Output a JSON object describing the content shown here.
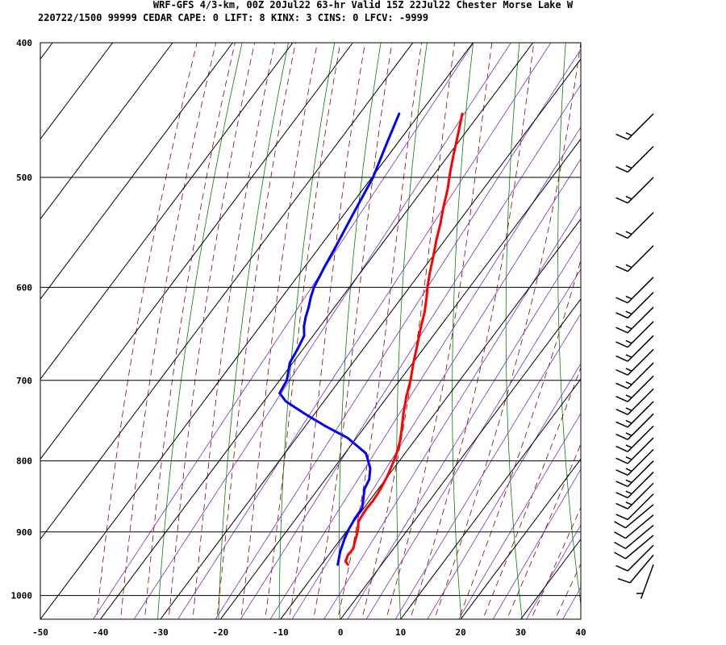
{
  "header": {
    "line1": "WRF-GFS 4/3-km, 00Z 20Jul22 63-hr Valid 15Z 22Jul22 Chester Morse Lake W",
    "line2": "220722/1500 99999  CEDAR   CAPE:     0 LIFT:     8 KINX:     3 CINS:     0 LFCV: -9999"
  },
  "colors": {
    "background": "#ffffff",
    "grid": "#000000",
    "temperature": "#ff0000",
    "dewpoint": "#0000ff",
    "dry_adiabat": "#008000",
    "moist_adiabat": "#8b0000",
    "mixing_ratio": "#7b2fbe",
    "barbs": "#000000"
  },
  "chart_data": {
    "type": "skew-t",
    "x": {
      "label": "",
      "range": [
        -50,
        40
      ],
      "ticks": [
        "-50",
        "-40",
        "-30",
        "-20",
        "-10",
        "0",
        "10",
        "20",
        "30",
        "40"
      ],
      "tick_values": [
        -50,
        -40,
        -30,
        -20,
        -10,
        0,
        10,
        20,
        30,
        40
      ]
    },
    "y": {
      "label": "",
      "scale": "log",
      "range": [
        1040,
        400
      ],
      "ticks": [
        "400",
        "500",
        "600",
        "700",
        "800",
        "900",
        "1000"
      ],
      "tick_values": [
        400,
        500,
        600,
        700,
        800,
        900,
        1000
      ]
    },
    "grid": true,
    "series": [
      {
        "key": "temperature",
        "pressure": [
          950,
          945,
          935,
          925,
          915,
          905,
          895,
          885,
          875,
          865,
          855,
          845,
          835,
          820,
          805,
          790,
          775,
          760,
          740,
          720,
          700,
          680,
          660,
          640,
          625,
          610,
          600,
          585,
          570,
          555,
          540,
          525,
          510,
          495,
          480,
          465,
          450
        ],
        "values": [
          -5.6,
          -6.4,
          -6.8,
          -6.7,
          -7.3,
          -7.8,
          -8.4,
          -9.2,
          -9.4,
          -9.5,
          -9.4,
          -9.5,
          -9.7,
          -10.1,
          -10.7,
          -11.4,
          -12.3,
          -13.5,
          -15.2,
          -16.8,
          -18.2,
          -19.9,
          -21.5,
          -23.2,
          -24.4,
          -25.9,
          -27.0,
          -28.5,
          -29.9,
          -31.4,
          -32.8,
          -34.4,
          -35.9,
          -37.7,
          -39.4,
          -41.1,
          -42.9
        ]
      },
      {
        "key": "dewpoint",
        "pressure": [
          950,
          930,
          910,
          895,
          880,
          865,
          850,
          838,
          825,
          810,
          790,
          770,
          755,
          740,
          725,
          715,
          700,
          680,
          665,
          650,
          640,
          630,
          620,
          610,
          600,
          580,
          560,
          530,
          500,
          475,
          450
        ],
        "values": [
          -7.3,
          -8.5,
          -9.4,
          -9.9,
          -10.2,
          -10.3,
          -11.4,
          -12.3,
          -12.7,
          -13.9,
          -16.5,
          -21.5,
          -26.7,
          -31.6,
          -36.3,
          -38.4,
          -38.8,
          -40.5,
          -40.9,
          -41.5,
          -42.7,
          -43.6,
          -44.3,
          -45.2,
          -45.9,
          -46.7,
          -47.4,
          -48.6,
          -49.8,
          -51.6,
          -53.4
        ]
      }
    ],
    "wind_barbs": {
      "pressure": [
        950,
        935,
        920,
        905,
        890,
        875,
        860,
        845,
        830,
        815,
        800,
        785,
        770,
        755,
        740,
        725,
        710,
        695,
        680,
        665,
        650,
        635,
        620,
        605,
        590,
        560,
        530,
        500,
        475,
        450
      ],
      "speed_kt": [
        5,
        10,
        10,
        10,
        10,
        10,
        10,
        10,
        15,
        15,
        15,
        15,
        15,
        15,
        15,
        15,
        15,
        15,
        15,
        15,
        15,
        15,
        15,
        15,
        15,
        15,
        15,
        15,
        15,
        15
      ],
      "direction_deg": [
        200,
        220,
        225,
        230,
        230,
        230,
        230,
        225,
        225,
        225,
        225,
        225,
        225,
        225,
        225,
        225,
        225,
        225,
        225,
        225,
        225,
        225,
        225,
        225,
        225,
        225,
        225,
        225,
        225,
        225
      ]
    }
  }
}
